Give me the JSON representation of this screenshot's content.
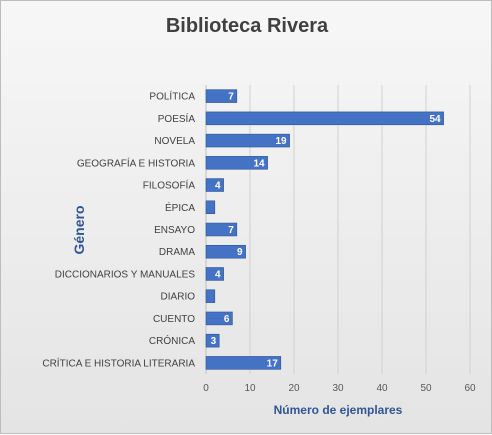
{
  "chart_data": {
    "type": "bar",
    "orientation": "horizontal",
    "title": "Biblioteca Rivera",
    "xlabel": "Número de ejemplares",
    "ylabel": "Género",
    "categories": [
      "POLÍTICA",
      "POESÍA",
      "NOVELA",
      "GEOGRAFÍA E HISTORIA",
      "FILOSOFÍA",
      "ÉPICA",
      "ENSAYO",
      "DRAMA",
      "DICCIONARIOS Y MANUALES",
      "DIARIO",
      "CUENTO",
      "CRÓNICA",
      "CRÍTICA E HISTORIA LITERARIA"
    ],
    "values": [
      7,
      54,
      19,
      14,
      4,
      2,
      7,
      9,
      4,
      2,
      6,
      3,
      17
    ],
    "data_labels": [
      "7",
      "54",
      "19",
      "14",
      "4",
      "",
      "7",
      "9",
      "4",
      "",
      "6",
      "3",
      "17"
    ],
    "xlim": [
      0,
      60
    ],
    "xticks": [
      0,
      10,
      20,
      30,
      40,
      50,
      60
    ],
    "grid": "vertical",
    "legend": "none",
    "colors": {
      "bar": "#4472C4",
      "bar_border": "#2F5597",
      "axis_title": "#2F5597",
      "grid": "#d0d0d0",
      "text": "#404040"
    }
  }
}
